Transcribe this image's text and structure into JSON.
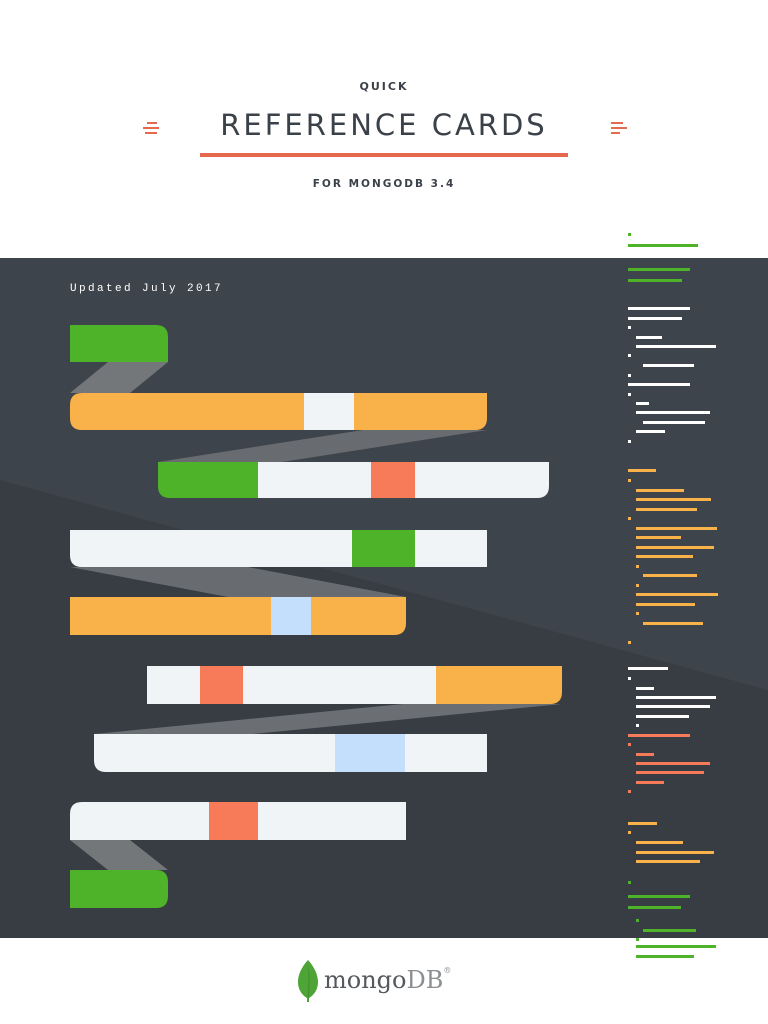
{
  "header": {
    "kicker": "QUICK",
    "title": "REFERENCE CARDS",
    "subtitle": "FOR MONGODB 3.4"
  },
  "panel": {
    "updated": "Updated July 2017"
  },
  "footer": {
    "logo_name": "mongo",
    "logo_suffix": "DB",
    "logo_mark": "®"
  },
  "icons": {
    "logo": "mongodb-leaf-icon"
  },
  "colors": {
    "background": "#ffffff",
    "panel": "#3e444b",
    "heading": "#3b4148",
    "accent_red": "#e5694c",
    "green": "#4fb32a",
    "orange": "#f9b14a",
    "light": "#f1f4f7",
    "coral": "#f77a59",
    "blue": "#c3dffb",
    "ribbon": "#737679"
  }
}
